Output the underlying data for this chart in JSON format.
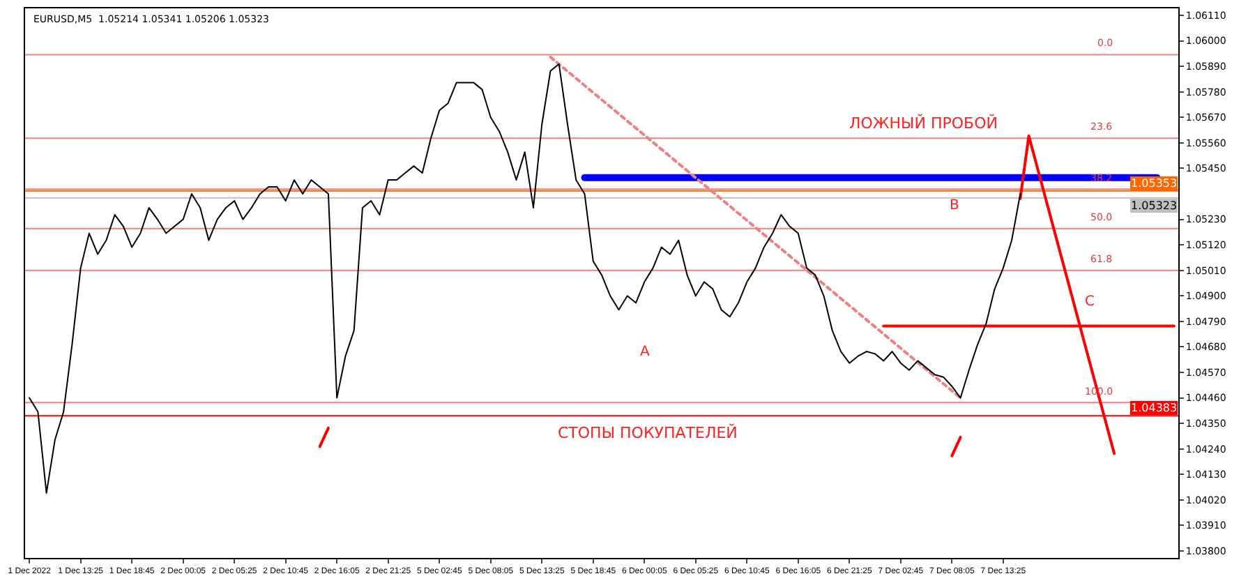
{
  "chart_data": {
    "type": "line",
    "title": "EURUSD,M5  1.05214 1.05341 1.05206 1.05323",
    "categories": [
      "1 Dec 2022",
      null,
      null,
      null,
      null,
      null,
      "1 Dec 13:25",
      null,
      null,
      null,
      null,
      null,
      "1 Dec 18:45",
      null,
      null,
      null,
      null,
      null,
      "2 Dec 00:05",
      null,
      null,
      null,
      null,
      null,
      "2 Dec 05:25",
      null,
      null,
      null,
      null,
      null,
      "2 Dec 10:45",
      null,
      null,
      null,
      null,
      null,
      "2 Dec 16:05",
      null,
      null,
      null,
      null,
      null,
      "2 Dec 21:25",
      null,
      null,
      null,
      null,
      null,
      "5 Dec 02:45",
      null,
      null,
      null,
      null,
      null,
      "5 Dec 08:05",
      null,
      null,
      null,
      null,
      null,
      "5 Dec 13:25",
      null,
      null,
      null,
      null,
      null,
      "5 Dec 18:45",
      null,
      null,
      null,
      null,
      null,
      "6 Dec 00:05",
      null,
      null,
      null,
      null,
      null,
      "6 Dec 05:25",
      null,
      null,
      null,
      null,
      null,
      "6 Dec 10:45",
      null,
      null,
      null,
      null,
      null,
      "6 Dec 16:05",
      null,
      null,
      null,
      null,
      null,
      "6 Dec 21:25",
      null,
      null,
      null,
      null,
      null,
      "7 Dec 02:45",
      null,
      null,
      null,
      null,
      null,
      "7 Dec 08:05",
      null,
      null,
      null,
      null,
      null,
      "7 Dec 13:25",
      null,
      null,
      null,
      null,
      null,
      null,
      null,
      null,
      null,
      null,
      null,
      null,
      null,
      null,
      null,
      null,
      null,
      null,
      null,
      null
    ],
    "series": [
      {
        "color": "#000000",
        "values": [
          1.0446,
          1.044,
          1.0405,
          1.0428,
          1.044,
          1.0469,
          1.0502,
          1.0517,
          1.0508,
          1.0514,
          1.0525,
          1.052,
          1.0511,
          1.0517,
          1.0528,
          1.0523,
          1.0517,
          1.052,
          1.0523,
          1.0534,
          1.0528,
          1.0514,
          1.0523,
          1.0528,
          1.0531,
          1.0523,
          1.0528,
          1.0534,
          1.0537,
          1.0537,
          1.0531,
          1.054,
          1.0534,
          1.054,
          1.0537,
          1.0534,
          1.0446,
          1.0464,
          1.0475,
          1.0528,
          1.0531,
          1.0525,
          1.054,
          1.054,
          1.0543,
          1.0546,
          1.0543,
          1.0558,
          1.057,
          1.0573,
          1.0582,
          1.0582,
          1.0582,
          1.0579,
          1.0567,
          1.0561,
          1.0552,
          1.054,
          1.0552,
          1.0528,
          1.0564,
          1.0587,
          1.059,
          1.0564,
          1.054,
          1.0534,
          1.0505,
          1.0499,
          1.049,
          1.0484,
          1.049,
          1.0487,
          1.0496,
          1.0502,
          1.0511,
          1.0508,
          1.0514,
          1.0499,
          1.049,
          1.0496,
          1.0493,
          1.0484,
          1.0481,
          1.0487,
          1.0496,
          1.0502,
          1.0511,
          1.0517,
          1.0525,
          1.052,
          1.0517,
          1.0502,
          1.0499,
          1.049,
          1.0475,
          1.0466,
          1.0461,
          1.0464,
          1.0466,
          1.0465,
          1.0462,
          1.0466,
          1.0461,
          1.0458,
          1.0462,
          1.0459,
          1.0456,
          1.0455,
          1.0451,
          1.0446,
          1.0458,
          1.0469,
          1.0478,
          1.0493,
          1.0502,
          1.0514,
          1.0534,
          null,
          null,
          null,
          null,
          null,
          null,
          null,
          null,
          null,
          null,
          null,
          null,
          null,
          null,
          null,
          null,
          null,
          null
        ]
      },
      {
        "color": "#0000ff",
        "values": [
          null,
          null,
          null,
          null,
          null,
          null,
          null,
          null,
          null,
          null,
          null,
          null,
          null,
          null,
          null,
          null,
          null,
          null,
          null,
          null,
          null,
          null,
          null,
          null,
          null,
          null,
          null,
          null,
          null,
          null,
          null,
          null,
          null,
          null,
          null,
          null,
          null,
          null,
          null,
          null,
          null,
          null,
          null,
          null,
          null,
          null,
          null,
          null,
          null,
          null,
          null,
          null,
          null,
          null,
          null,
          null,
          null,
          null,
          null,
          null,
          null,
          null,
          null,
          null,
          null,
          1.0541,
          null,
          null,
          null,
          null,
          null,
          null,
          null,
          null,
          null,
          null,
          null,
          null,
          null,
          null,
          null,
          null,
          null,
          null,
          null,
          null,
          null,
          null,
          null,
          null,
          null,
          null,
          null,
          null,
          null,
          null,
          null,
          null,
          null,
          null,
          null,
          null,
          null,
          null,
          null,
          null,
          null,
          null,
          null,
          null,
          null,
          null,
          null,
          null,
          null,
          null,
          null,
          null,
          null,
          null,
          null,
          null,
          null,
          null,
          null,
          null,
          null,
          null,
          null,
          null,
          null,
          null,
          1.0541,
          null,
          null
        ]
      },
      {
        "color": "#ff0000",
        "values": [
          null,
          null,
          null,
          null,
          null,
          null,
          null,
          null,
          null,
          null,
          null,
          null,
          null,
          null,
          null,
          null,
          null,
          null,
          null,
          null,
          null,
          null,
          null,
          null,
          null,
          null,
          null,
          null,
          null,
          null,
          null,
          null,
          null,
          null,
          null,
          null,
          null,
          null,
          null,
          null,
          null,
          null,
          null,
          null,
          null,
          null,
          null,
          null,
          null,
          null,
          null,
          null,
          null,
          null,
          null,
          null,
          null,
          null,
          null,
          null,
          null,
          null,
          null,
          null,
          null,
          null,
          null,
          null,
          null,
          null,
          null,
          null,
          null,
          null,
          null,
          null,
          null,
          null,
          null,
          null,
          null,
          null,
          null,
          null,
          null,
          null,
          null,
          null,
          null,
          null,
          null,
          null,
          null,
          null,
          null,
          null,
          null,
          null,
          null,
          null,
          1.0477,
          null,
          null,
          null,
          null,
          null,
          null,
          null,
          null,
          null,
          null,
          null,
          null,
          null,
          null,
          null,
          null,
          null,
          null,
          null,
          null,
          null,
          null,
          null,
          null,
          null,
          null,
          null,
          null,
          null,
          null,
          null,
          null,
          null,
          1.0477
        ]
      },
      {
        "color": "#f08080",
        "line_style": "dotted",
        "values": [
          null,
          null,
          null,
          null,
          null,
          null,
          null,
          null,
          null,
          null,
          null,
          null,
          null,
          null,
          null,
          null,
          null,
          null,
          null,
          null,
          null,
          null,
          null,
          null,
          null,
          null,
          null,
          null,
          null,
          null,
          null,
          null,
          null,
          null,
          null,
          null,
          null,
          null,
          null,
          null,
          null,
          null,
          null,
          null,
          null,
          null,
          null,
          null,
          null,
          null,
          null,
          null,
          null,
          null,
          null,
          null,
          null,
          null,
          null,
          null,
          null,
          1.0593,
          null,
          null,
          null,
          null,
          null,
          null,
          null,
          null,
          null,
          null,
          null,
          null,
          null,
          null,
          null,
          null,
          null,
          null,
          null,
          null,
          null,
          null,
          null,
          null,
          null,
          null,
          null,
          null,
          null,
          null,
          null,
          null,
          null,
          null,
          null,
          null,
          null,
          null,
          null,
          null,
          null,
          null,
          null,
          null,
          null,
          null,
          null,
          1.0446,
          null,
          null,
          null,
          null,
          null,
          null,
          null,
          null,
          null,
          null,
          null,
          null,
          null,
          null,
          null,
          null,
          null,
          null,
          null,
          null,
          null,
          null,
          null,
          null,
          null
        ]
      },
      {
        "color": "#ff0000",
        "values": [
          null,
          null,
          null,
          null,
          null,
          null,
          null,
          null,
          null,
          null,
          null,
          null,
          null,
          null,
          null,
          null,
          null,
          null,
          null,
          null,
          null,
          null,
          null,
          null,
          null,
          null,
          null,
          null,
          null,
          null,
          null,
          null,
          null,
          null,
          null,
          null,
          null,
          null,
          null,
          null,
          null,
          null,
          null,
          null,
          null,
          null,
          null,
          null,
          null,
          null,
          null,
          null,
          null,
          null,
          null,
          null,
          null,
          null,
          null,
          null,
          null,
          null,
          null,
          null,
          null,
          null,
          null,
          null,
          null,
          null,
          null,
          null,
          null,
          null,
          null,
          null,
          null,
          null,
          null,
          null,
          null,
          null,
          null,
          null,
          null,
          null,
          null,
          null,
          null,
          null,
          null,
          null,
          null,
          null,
          null,
          null,
          null,
          null,
          null,
          null,
          null,
          null,
          null,
          null,
          null,
          null,
          null,
          null,
          null,
          null,
          null,
          null,
          null,
          null,
          null,
          null,
          1.0532,
          1.0559,
          null,
          null,
          null,
          null,
          null,
          null,
          null,
          null,
          null,
          1.0422,
          null,
          null,
          null,
          null,
          null,
          null,
          null
        ]
      },
      {
        "color": "#ff0000",
        "values": [
          null,
          null,
          null,
          null,
          null,
          null,
          null,
          null,
          null,
          null,
          null,
          null,
          null,
          null,
          null,
          null,
          null,
          null,
          null,
          null,
          null,
          null,
          null,
          null,
          null,
          null,
          null,
          null,
          null,
          null,
          null,
          null,
          null,
          null,
          1.0425,
          1.0433,
          null,
          null,
          null,
          null,
          null,
          null,
          null,
          null,
          null,
          null,
          null,
          null,
          null,
          null,
          null,
          null,
          null,
          null,
          null,
          null,
          null,
          null,
          null,
          null,
          null,
          null,
          null,
          null,
          null,
          null,
          null,
          null,
          null,
          null,
          null,
          null,
          null,
          null,
          null,
          null,
          null,
          null,
          null,
          null,
          null,
          null,
          null,
          null,
          null,
          null,
          null,
          null,
          null,
          null,
          null,
          null,
          null,
          null,
          null,
          null,
          null,
          null,
          null,
          null,
          null,
          null,
          null,
          null,
          null,
          null,
          null,
          null,
          null,
          null,
          null,
          null,
          null,
          null,
          null,
          null,
          null,
          null,
          null,
          null,
          null,
          null,
          null,
          null,
          null,
          null,
          null,
          null,
          null,
          null,
          null,
          null,
          null,
          null,
          null
        ]
      },
      {
        "color": "#ff0000",
        "values": [
          null,
          null,
          null,
          null,
          null,
          null,
          null,
          null,
          null,
          null,
          null,
          null,
          null,
          null,
          null,
          null,
          null,
          null,
          null,
          null,
          null,
          null,
          null,
          null,
          null,
          null,
          null,
          null,
          null,
          null,
          null,
          null,
          null,
          null,
          null,
          null,
          null,
          null,
          null,
          null,
          null,
          null,
          null,
          null,
          null,
          null,
          null,
          null,
          null,
          null,
          null,
          null,
          null,
          null,
          null,
          null,
          null,
          null,
          null,
          null,
          null,
          null,
          null,
          null,
          null,
          null,
          null,
          null,
          null,
          null,
          null,
          null,
          null,
          null,
          null,
          null,
          null,
          null,
          null,
          null,
          null,
          null,
          null,
          null,
          null,
          null,
          null,
          null,
          null,
          null,
          null,
          null,
          null,
          null,
          null,
          null,
          null,
          null,
          null,
          null,
          null,
          null,
          null,
          null,
          null,
          null,
          null,
          null,
          1.0421,
          1.0429,
          null,
          null,
          null,
          null,
          null,
          null,
          null,
          null,
          null,
          null,
          null,
          null,
          null,
          null,
          null,
          null,
          null,
          null,
          null,
          null,
          null,
          null,
          null,
          null,
          null
        ]
      }
    ],
    "ylim": [
      1.0377,
      1.0614
    ],
    "yticks": [
      {
        "value": 1.038,
        "label": "1.03800"
      },
      {
        "value": 1.0391,
        "label": "1.03910"
      },
      {
        "value": 1.0402,
        "label": "1.04020"
      },
      {
        "value": 1.0413,
        "label": "1.04130"
      },
      {
        "value": 1.0424,
        "label": "1.04240"
      },
      {
        "value": 1.0435,
        "label": "1.04350"
      },
      {
        "value": 1.0446,
        "label": "1.04460"
      },
      {
        "value": 1.0457,
        "label": "1.04570"
      },
      {
        "value": 1.0468,
        "label": "1.04680"
      },
      {
        "value": 1.0479,
        "label": "1.04790"
      },
      {
        "value": 1.049,
        "label": "1.04900"
      },
      {
        "value": 1.0501,
        "label": "1.05010"
      },
      {
        "value": 1.0512,
        "label": "1.05120"
      },
      {
        "value": 1.0523,
        "label": "1.05230"
      },
      {
        "value": 1.0545,
        "label": "1.05450"
      },
      {
        "value": 1.0556,
        "label": "1.05560"
      },
      {
        "value": 1.0567,
        "label": "1.05670"
      },
      {
        "value": 1.0578,
        "label": "1.05780"
      },
      {
        "value": 1.0589,
        "label": "1.05890"
      },
      {
        "value": 1.06,
        "label": "1.06000"
      },
      {
        "value": 1.0611,
        "label": "1.06110"
      }
    ],
    "ref_lines": [
      {
        "axis": "y",
        "value": 1.05353,
        "label": "1.05353",
        "color": "#ff6600"
      },
      {
        "axis": "y",
        "value": 1.05323,
        "label": "1.05323",
        "color": "#c0c0c0"
      },
      {
        "axis": "y",
        "value": 1.04383,
        "label": "1.04383",
        "color": "#ff0000"
      },
      {
        "axis": "y",
        "value": 1.0594,
        "color": "#f08080"
      },
      {
        "axis": "y",
        "value": 1.0558,
        "color": "#f08080"
      },
      {
        "axis": "y",
        "value": 1.0536,
        "color": "#f08080"
      },
      {
        "axis": "y",
        "value": 1.0519,
        "color": "#f08080"
      },
      {
        "axis": "y",
        "value": 1.0501,
        "color": "#f08080"
      },
      {
        "axis": "y",
        "value": 1.0444,
        "color": "#f08080"
      }
    ],
    "annotations": [
      "ЛОЖНЫЙ ПРОБОЙ",
      "СТОПЫ ПОКУПАТЕЛЕЙ",
      "A",
      "B",
      "C",
      {
        "text": "0.0",
        "y": 1.0594
      },
      {
        "text": "23.6",
        "y": 1.0558
      },
      {
        "text": "38.2",
        "y": 1.0536
      },
      {
        "text": "50.0",
        "y": 1.0519
      },
      {
        "text": "61.8",
        "y": 1.0501
      },
      {
        "text": "100.0",
        "y": 1.0444
      }
    ],
    "grid": false,
    "marker": "none"
  }
}
